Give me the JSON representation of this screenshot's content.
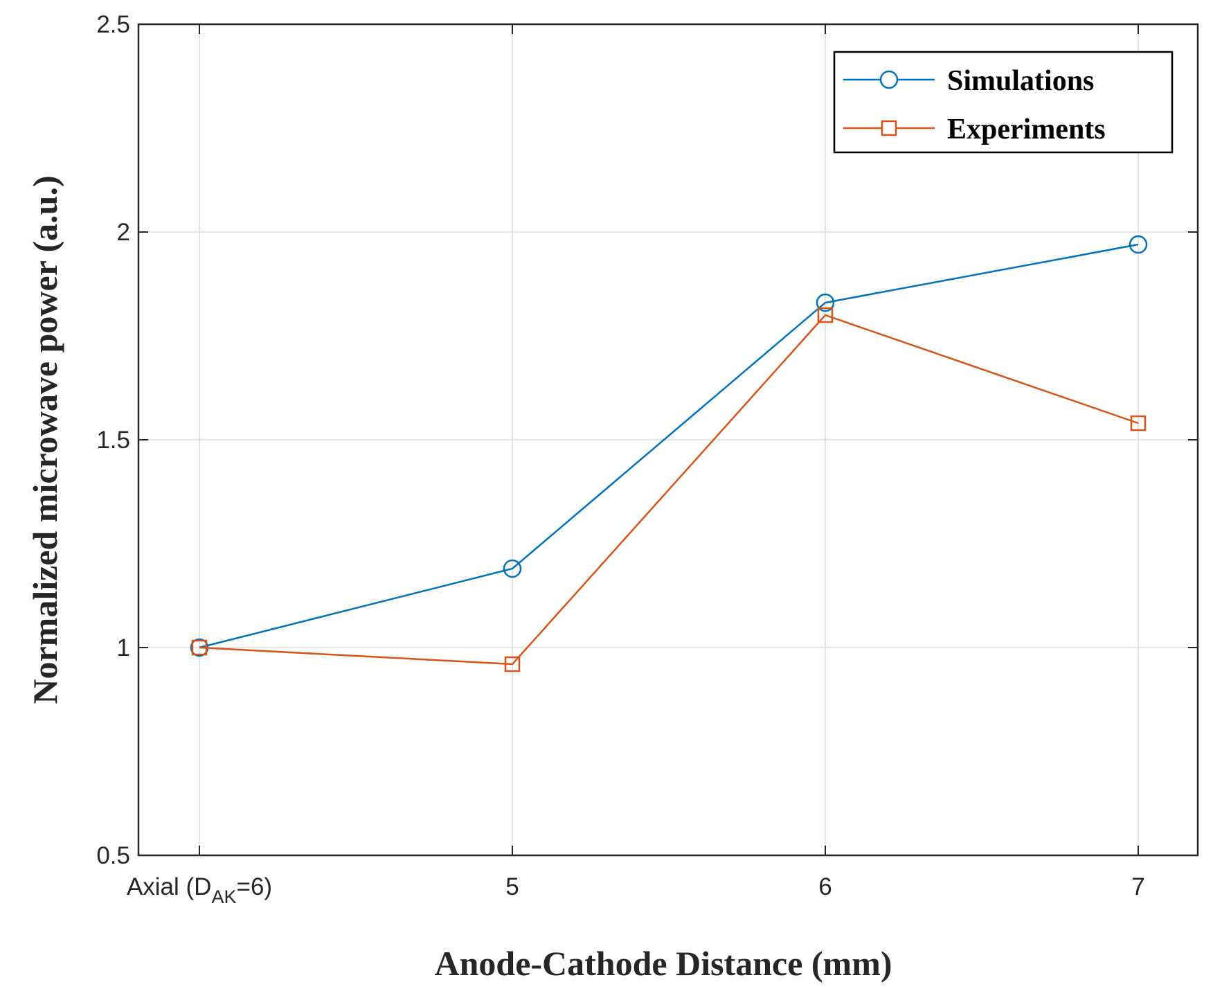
{
  "chart_data": {
    "type": "line",
    "title": "",
    "xlabel": "Anode-Cathode Distance (mm)",
    "ylabel": "Normalized microwave power (a.u.)",
    "categories": [
      "Axial (D_AK=6)",
      "5",
      "6",
      "7"
    ],
    "x_tick_labels": [
      {
        "main": "Axial (D",
        "sub": "AK",
        "tail": "=6)"
      },
      {
        "main": "5",
        "sub": "",
        "tail": ""
      },
      {
        "main": "6",
        "sub": "",
        "tail": ""
      },
      {
        "main": "7",
        "sub": "",
        "tail": ""
      }
    ],
    "ylim": [
      0.5,
      2.5
    ],
    "yticks": [
      0.5,
      1,
      1.5,
      2,
      2.5
    ],
    "ytick_labels": [
      "0.5",
      "1",
      "1.5",
      "2",
      "2.5"
    ],
    "grid": true,
    "legend_position": "top-right",
    "series": [
      {
        "name": "Simulations",
        "marker": "circle",
        "color": "#0072BD",
        "values": [
          1.0,
          1.19,
          1.83,
          1.97
        ]
      },
      {
        "name": "Experiments",
        "marker": "square",
        "color": "#D95319",
        "values": [
          1.0,
          0.96,
          1.8,
          1.54
        ]
      }
    ]
  }
}
